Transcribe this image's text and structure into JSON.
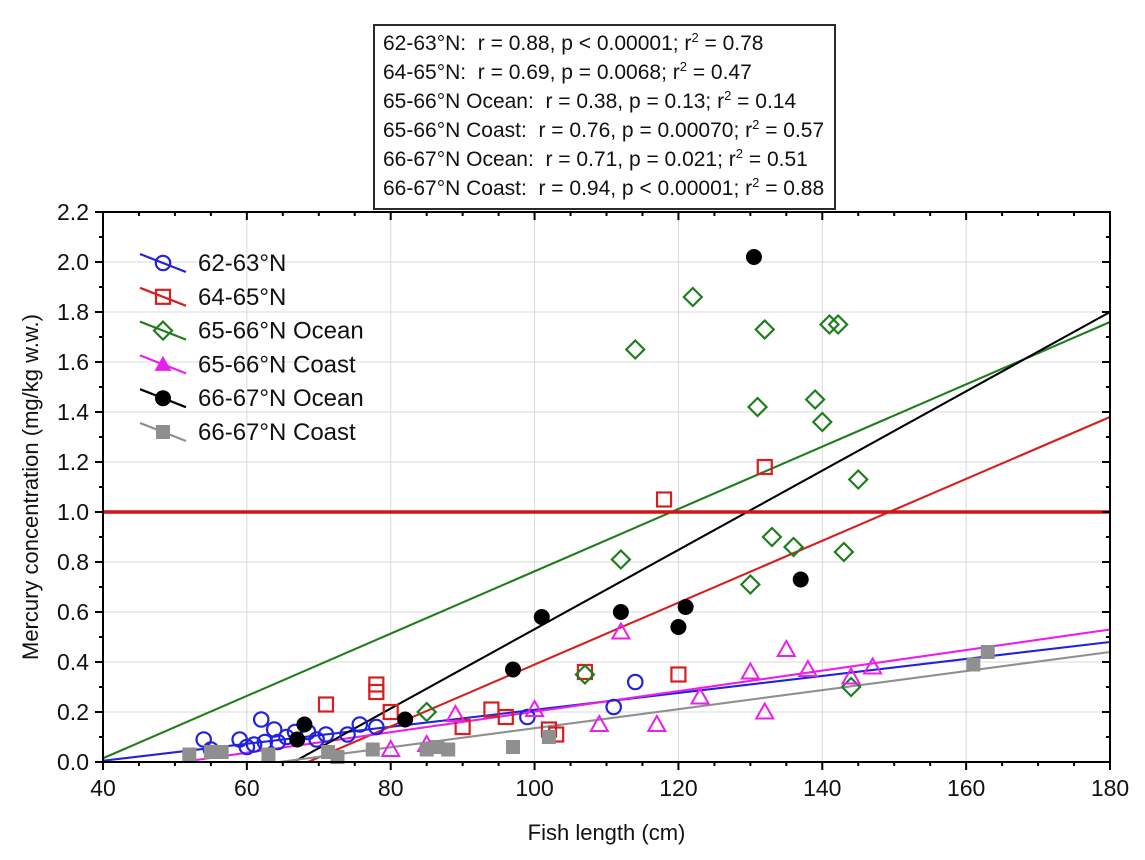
{
  "chart_data": {
    "type": "scatter",
    "xlabel": "Fish length (cm)",
    "ylabel": "Mercury concentration (mg/kg w.w.)",
    "xlim": [
      40,
      180
    ],
    "ylim": [
      0,
      2.2
    ],
    "x_ticks": [
      40,
      60,
      80,
      100,
      120,
      140,
      160,
      180
    ],
    "x_minor_step": 5,
    "y_ticks": [
      0.0,
      0.2,
      0.4,
      0.6,
      0.8,
      1.0,
      1.2,
      1.4,
      1.6,
      1.8,
      2.0,
      2.2
    ],
    "y_minor_step": 0.1,
    "grid": true,
    "grid_color": "#d9d9d9",
    "frame_color": "#000000",
    "legend_position": "top-left-inside",
    "reference_line": {
      "y": 1.0,
      "color": "#d01515",
      "width": 3.5
    },
    "stats_box": [
      {
        "label": "62-63°N",
        "text": "r = 0.88, p < 0.00001",
        "r2": "0.78"
      },
      {
        "label": "64-65°N",
        "text": "r = 0.69, p = 0.0068",
        "r2": "0.47"
      },
      {
        "label": "65-66°N Ocean",
        "text": "r = 0.38, p = 0.13",
        "r2": "0.14"
      },
      {
        "label": "65-66°N Coast",
        "text": "r = 0.76, p = 0.00070",
        "r2": "0.57"
      },
      {
        "label": "66-67°N Ocean",
        "text": "r = 0.71, p = 0.021",
        "r2": "0.51"
      },
      {
        "label": "66-67°N Coast",
        "text": "r = 0.94, p < 0.00001",
        "r2": "0.88"
      }
    ],
    "series": [
      {
        "name": "62-63°N",
        "color": "#2222dd",
        "marker": "circle-open",
        "points": [
          [
            54,
            0.09
          ],
          [
            55,
            0.05
          ],
          [
            59,
            0.09
          ],
          [
            60,
            0.06
          ],
          [
            61,
            0.07
          ],
          [
            62,
            0.17
          ],
          [
            62.5,
            0.08
          ],
          [
            63.8,
            0.13
          ],
          [
            64.3,
            0.08
          ],
          [
            65.5,
            0.1
          ],
          [
            66.7,
            0.12
          ],
          [
            68.5,
            0.12
          ],
          [
            69.7,
            0.09
          ],
          [
            71,
            0.11
          ],
          [
            74,
            0.11
          ],
          [
            75.7,
            0.15
          ],
          [
            78,
            0.14
          ],
          [
            99,
            0.18
          ],
          [
            111,
            0.22
          ],
          [
            114,
            0.32
          ]
        ],
        "trend": [
          [
            40,
            0.005
          ],
          [
            180,
            0.48
          ]
        ]
      },
      {
        "name": "64-65°N",
        "color": "#d42020",
        "marker": "square-open",
        "points": [
          [
            71,
            0.23
          ],
          [
            78,
            0.31
          ],
          [
            78,
            0.28
          ],
          [
            80,
            0.2
          ],
          [
            90,
            0.14
          ],
          [
            94,
            0.21
          ],
          [
            96,
            0.18
          ],
          [
            102,
            0.13
          ],
          [
            103,
            0.11
          ],
          [
            107,
            0.36
          ],
          [
            118,
            1.05
          ],
          [
            120,
            0.35
          ],
          [
            132,
            1.18
          ]
        ],
        "trend": [
          [
            68.5,
            0
          ],
          [
            180,
            1.38
          ]
        ]
      },
      {
        "name": "65-66°N Ocean",
        "color": "#1e7e1e",
        "marker": "diamond-open",
        "points": [
          [
            85,
            0.2
          ],
          [
            107,
            0.35
          ],
          [
            112,
            0.81
          ],
          [
            114,
            1.65
          ],
          [
            122,
            1.86
          ],
          [
            130,
            0.71
          ],
          [
            131,
            1.42
          ],
          [
            132,
            1.73
          ],
          [
            133,
            0.9
          ],
          [
            136,
            0.86
          ],
          [
            139,
            1.45
          ],
          [
            140,
            1.36
          ],
          [
            141,
            1.75
          ],
          [
            142.2,
            1.75
          ],
          [
            143,
            0.84
          ],
          [
            144,
            0.3
          ],
          [
            145,
            1.13
          ]
        ],
        "trend": [
          [
            40,
            0.015
          ],
          [
            180,
            1.76
          ]
        ]
      },
      {
        "name": "65-66°N Coast",
        "color": "#ea1fea",
        "marker": "triangle-open",
        "legend_marker": "triangle-filled",
        "points": [
          [
            80,
            0.05
          ],
          [
            85,
            0.07
          ],
          [
            89,
            0.19
          ],
          [
            100,
            0.21
          ],
          [
            109,
            0.15
          ],
          [
            112,
            0.52
          ],
          [
            117,
            0.15
          ],
          [
            123,
            0.26
          ],
          [
            130,
            0.36
          ],
          [
            132,
            0.2
          ],
          [
            135,
            0.45
          ],
          [
            138,
            0.37
          ],
          [
            144,
            0.34
          ],
          [
            147,
            0.38
          ]
        ],
        "trend": [
          [
            51,
            0
          ],
          [
            180,
            0.53
          ]
        ]
      },
      {
        "name": "66-67°N Ocean",
        "color": "#000000",
        "marker": "circle-filled",
        "points": [
          [
            67,
            0.09
          ],
          [
            68,
            0.15
          ],
          [
            82,
            0.17
          ],
          [
            97,
            0.37
          ],
          [
            101,
            0.58
          ],
          [
            112,
            0.6
          ],
          [
            120,
            0.54
          ],
          [
            121,
            0.62
          ],
          [
            130.5,
            2.02
          ],
          [
            137,
            0.73
          ]
        ],
        "trend": [
          [
            66.5,
            0
          ],
          [
            180,
            1.8
          ]
        ]
      },
      {
        "name": "66-67°N Coast",
        "color": "#8f8f8f",
        "marker": "square-filled",
        "points": [
          [
            52,
            0.03
          ],
          [
            55,
            0.04
          ],
          [
            56.5,
            0.04
          ],
          [
            63,
            0.03
          ],
          [
            71.3,
            0.04
          ],
          [
            72.6,
            0.02
          ],
          [
            77.5,
            0.05
          ],
          [
            85,
            0.05
          ],
          [
            86.5,
            0.06
          ],
          [
            88,
            0.05
          ],
          [
            97,
            0.06
          ],
          [
            102,
            0.1
          ],
          [
            161,
            0.39
          ],
          [
            163,
            0.44
          ]
        ],
        "trend": [
          [
            64.5,
            0
          ],
          [
            180,
            0.44
          ]
        ]
      }
    ]
  }
}
